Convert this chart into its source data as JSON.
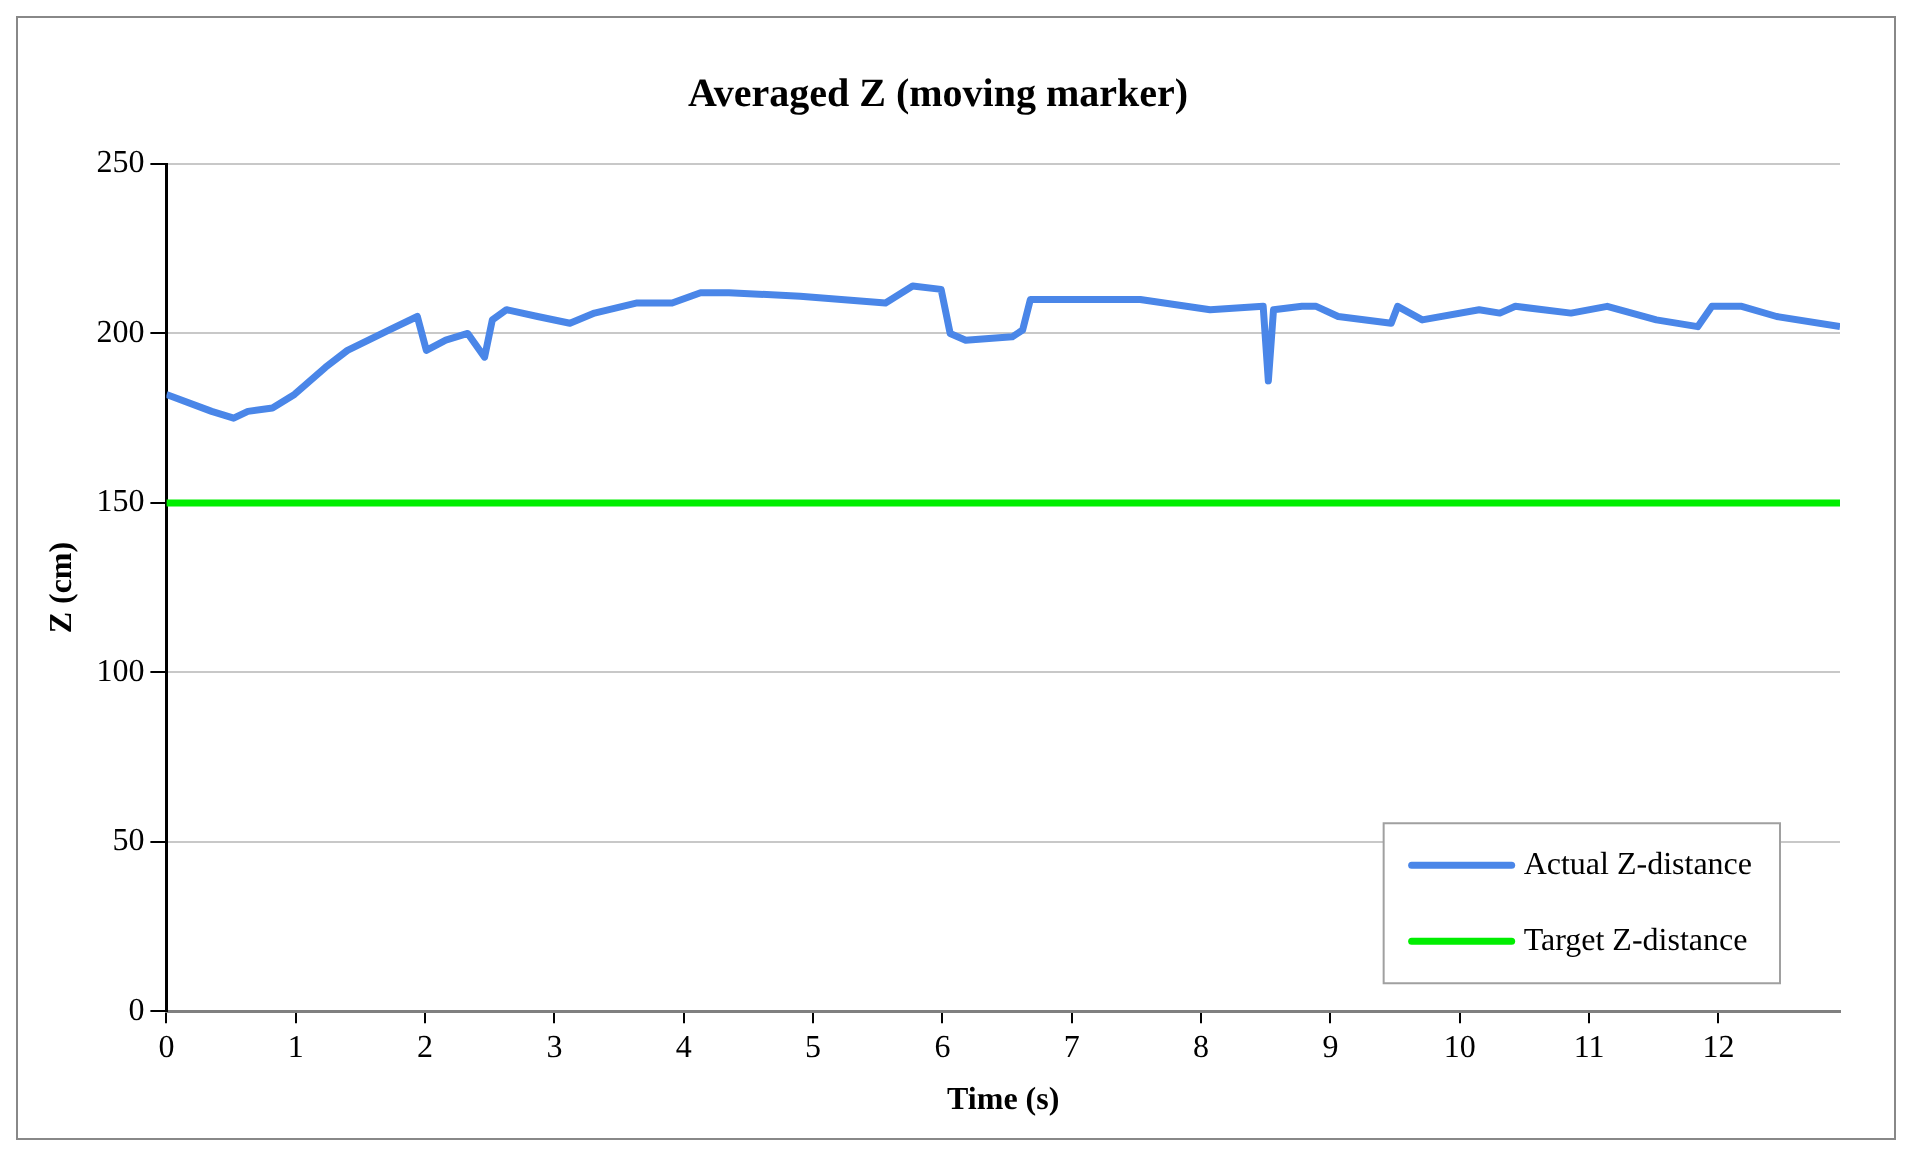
{
  "chart_data": {
    "type": "line",
    "title": "Averaged Z (moving marker)",
    "xlabel": "Time (s)",
    "ylabel": "Z (cm)",
    "xlim": [
      0,
      12.94
    ],
    "xticks": [
      0,
      1,
      2,
      3,
      4,
      5,
      6,
      7,
      8,
      9,
      10,
      11,
      12
    ],
    "ylim": [
      0,
      250
    ],
    "yticks": [
      0,
      50,
      100,
      150,
      200,
      250
    ],
    "grid": "y",
    "legend": "bottom right",
    "marker": "none",
    "line_style": "solid",
    "series": [
      {
        "name": "Actual Z-distance",
        "color": "#4a86e8",
        "x": [
          0,
          0.35,
          0.52,
          0.63,
          0.82,
          0.99,
          1.23,
          1.4,
          1.72,
          1.94,
          2.01,
          2.16,
          2.33,
          2.46,
          2.52,
          2.63,
          2.87,
          3.12,
          3.31,
          3.64,
          3.91,
          4.13,
          4.35,
          4.9,
          5.56,
          5.77,
          5.99,
          6.06,
          6.18,
          6.54,
          6.62,
          6.68,
          6.92,
          7.53,
          8.07,
          8.48,
          8.52,
          8.56,
          8.78,
          8.89,
          9.06,
          9.47,
          9.52,
          9.71,
          10.15,
          10.31,
          10.43,
          10.86,
          11.14,
          11.52,
          11.84,
          11.95,
          12.18,
          12.45,
          12.94
        ],
        "values": [
          182,
          177,
          175,
          177,
          178,
          182,
          190,
          195,
          201,
          205,
          195,
          198,
          200,
          193,
          204,
          207,
          205,
          203,
          206,
          209,
          209,
          212,
          212,
          211,
          209,
          214,
          213,
          200,
          198,
          199,
          201,
          210,
          210,
          210,
          207,
          208,
          186,
          207,
          208,
          208,
          205,
          203,
          208,
          204,
          207,
          206,
          208,
          206,
          208,
          204,
          202,
          208,
          208,
          205,
          202
        ]
      },
      {
        "name": "Target Z-distance",
        "color": "#00ee00",
        "x": [
          0,
          12.94
        ],
        "values": [
          150,
          150
        ]
      }
    ]
  }
}
